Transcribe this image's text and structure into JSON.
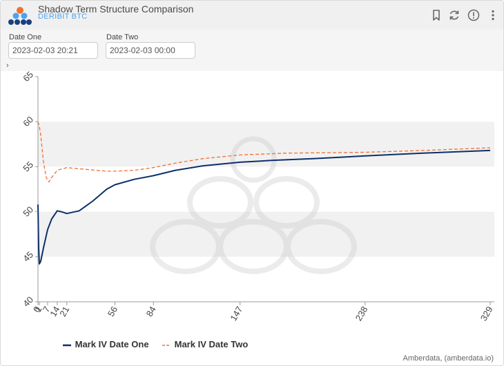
{
  "header": {
    "title": "Shadow Term Structure Comparison",
    "subtitle": "DERIBIT BTC",
    "icons": [
      "bookmark-icon",
      "refresh-icon",
      "info-icon",
      "more-vertical-icon"
    ]
  },
  "filters": {
    "date_one_label": "Date One",
    "date_one_value": "2023-02-03 20:21",
    "date_two_label": "Date Two",
    "date_two_value": "2023-02-03 00:00"
  },
  "expander_symbol": "›",
  "chart_data": {
    "type": "line",
    "xlabel": "",
    "ylabel": "",
    "xlim": [
      0,
      329
    ],
    "ylim": [
      40,
      65
    ],
    "x_ticks": [
      0,
      1,
      7,
      14,
      21,
      56,
      84,
      147,
      238,
      329
    ],
    "y_ticks": [
      40,
      45,
      50,
      55,
      60,
      65
    ],
    "grid": "horizontal bands",
    "legend_position": "bottom-left",
    "series": [
      {
        "name": "Mark IV Date One",
        "color": "#0b2f6b",
        "style": "solid",
        "points": [
          [
            0,
            50.8
          ],
          [
            0.5,
            46
          ],
          [
            1,
            44.2
          ],
          [
            2,
            44.5
          ],
          [
            4,
            46
          ],
          [
            7,
            48
          ],
          [
            10,
            49.2
          ],
          [
            14,
            50.1
          ],
          [
            17,
            50
          ],
          [
            21,
            49.8
          ],
          [
            30,
            50.1
          ],
          [
            40,
            51.2
          ],
          [
            50,
            52.5
          ],
          [
            56,
            53
          ],
          [
            70,
            53.6
          ],
          [
            84,
            54.0
          ],
          [
            100,
            54.6
          ],
          [
            120,
            55.1
          ],
          [
            147,
            55.5
          ],
          [
            170,
            55.7
          ],
          [
            200,
            55.9
          ],
          [
            238,
            56.2
          ],
          [
            280,
            56.5
          ],
          [
            329,
            56.8
          ]
        ]
      },
      {
        "name": "Mark IV Date Two",
        "color": "#f07030",
        "style": "dashed",
        "points": [
          [
            0,
            60
          ],
          [
            1,
            59.5
          ],
          [
            2,
            58.5
          ],
          [
            4,
            55.5
          ],
          [
            6,
            53.8
          ],
          [
            8,
            53.3
          ],
          [
            10,
            53.8
          ],
          [
            14,
            54.6
          ],
          [
            21,
            54.9
          ],
          [
            35,
            54.7
          ],
          [
            50,
            54.5
          ],
          [
            56,
            54.5
          ],
          [
            70,
            54.6
          ],
          [
            84,
            54.9
          ],
          [
            100,
            55.4
          ],
          [
            120,
            55.9
          ],
          [
            147,
            56.3
          ],
          [
            180,
            56.5
          ],
          [
            238,
            56.6
          ],
          [
            280,
            56.8
          ],
          [
            329,
            57.1
          ]
        ]
      }
    ]
  },
  "legend": {
    "series_one": "Mark IV Date One",
    "series_two": "Mark IV Date Two"
  },
  "credit": "Amberdata, (amberdata.io)"
}
